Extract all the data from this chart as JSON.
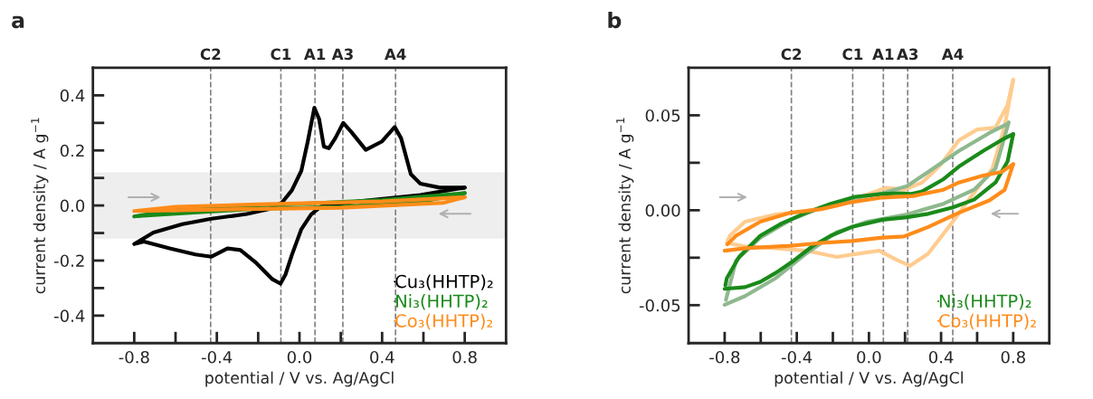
{
  "chart_data": [
    {
      "type": "line",
      "title": "a",
      "xlabel": "potential / V vs. Ag/AgCl",
      "ylabel": "current density / A g$^{−1}$",
      "xlim": [
        -1.0,
        1.0
      ],
      "ylim": [
        -0.5,
        0.5
      ],
      "xticks": [
        {
          "value": -0.8,
          "label": "-0.8"
        },
        {
          "value": -0.6,
          "label": null
        },
        {
          "value": -0.4,
          "label": "-0.4"
        },
        {
          "value": -0.2,
          "label": null
        },
        {
          "value": 0.0,
          "label": "0.0"
        },
        {
          "value": 0.2,
          "label": null
        },
        {
          "value": 0.4,
          "label": "0.4"
        },
        {
          "value": 0.6,
          "label": null
        },
        {
          "value": 0.8,
          "label": "0.8"
        }
      ],
      "yticks": [
        {
          "value": -0.4,
          "label": "-0.4"
        },
        {
          "value": -0.3,
          "label": null
        },
        {
          "value": -0.2,
          "label": "-0.2"
        },
        {
          "value": -0.1,
          "label": null
        },
        {
          "value": 0.0,
          "label": "0.0"
        },
        {
          "value": 0.1,
          "label": null
        },
        {
          "value": 0.2,
          "label": "0.2"
        },
        {
          "value": 0.3,
          "label": null
        },
        {
          "value": 0.4,
          "label": "0.4"
        }
      ],
      "grid": false,
      "legend": "bottom right",
      "bands": [
        {
          "axis": "y",
          "from": -0.12,
          "to": 0.12,
          "color": "#eeeeee"
        }
      ],
      "ref_lines": [
        {
          "axis": "x",
          "value": -0.43,
          "label": "C2",
          "color": "#808080",
          "line_style": "dashed"
        },
        {
          "axis": "x",
          "value": -0.09,
          "label": "C1",
          "color": "#808080",
          "line_style": "dashed"
        },
        {
          "axis": "x",
          "value": 0.075,
          "label": "A1",
          "color": "#808080",
          "line_style": "dashed"
        },
        {
          "axis": "x",
          "value": 0.21,
          "label": "A3",
          "color": "#808080",
          "line_style": "dashed"
        },
        {
          "axis": "x",
          "value": 0.465,
          "label": "A4",
          "color": "#808080",
          "line_style": "dashed"
        }
      ],
      "series": [
        {
          "name": "Cu₃(HHTP)₂",
          "color": "#000000",
          "x": [
            -0.8,
            -0.707,
            -0.567,
            -0.426,
            -0.255,
            -0.146,
            -0.084,
            -0.037,
            0.009,
            0.04,
            0.072,
            0.095,
            0.118,
            0.142,
            0.173,
            0.212,
            0.251,
            0.321,
            0.398,
            0.461,
            0.492,
            0.539,
            0.585,
            0.679,
            0.8
          ],
          "values": [
            -0.14,
            -0.098,
            -0.068,
            -0.048,
            -0.031,
            -0.013,
            0.011,
            0.055,
            0.126,
            0.232,
            0.355,
            0.314,
            0.214,
            0.208,
            0.244,
            0.3,
            0.267,
            0.202,
            0.232,
            0.285,
            0.244,
            0.114,
            0.079,
            0.065,
            0.065
          ]
        },
        {
          "color": "#000000",
          "x": [
            0.8,
            0.585,
            0.274,
            0.103,
            0.056,
            0.009,
            -0.037,
            -0.068,
            -0.092,
            -0.131,
            -0.209,
            -0.286,
            -0.349,
            -0.426,
            -0.504,
            -0.629,
            -0.753,
            -0.792
          ],
          "values": [
            0.065,
            0.038,
            0.014,
            -0.004,
            -0.033,
            -0.086,
            -0.18,
            -0.251,
            -0.284,
            -0.268,
            -0.209,
            -0.162,
            -0.156,
            -0.186,
            -0.178,
            -0.156,
            -0.131,
            -0.138
          ]
        },
        {
          "name": "Ni₃(HHTP)₂",
          "color": "#1a8a1a",
          "x": [
            -0.8,
            -0.6,
            -0.4,
            0.0,
            0.4,
            0.8
          ],
          "values": [
            -0.04,
            -0.015,
            -0.005,
            0.006,
            0.02,
            0.045
          ]
        },
        {
          "color": "#1a8a1a",
          "x": [
            0.8,
            0.6,
            0.2,
            -0.2,
            -0.6,
            -0.792
          ],
          "values": [
            0.045,
            0.015,
            -0.005,
            -0.012,
            -0.03,
            -0.039
          ]
        },
        {
          "name": "Co₃(HHTP)₂",
          "color": "#ff8c1a",
          "x": [
            -0.8,
            -0.6,
            -0.2,
            0.4,
            0.8
          ],
          "values": [
            -0.02,
            -0.005,
            0.004,
            0.015,
            0.03
          ]
        },
        {
          "color": "#ff8c1a",
          "x": [
            0.8,
            0.7,
            0.2,
            -0.4,
            -0.78
          ],
          "values": [
            0.03,
            0.01,
            -0.008,
            -0.015,
            -0.02
          ]
        }
      ]
    },
    {
      "type": "line",
      "title": "b",
      "xlabel": "potential / V vs. Ag/AgCl",
      "ylabel": "current density / A g$^{−1}$",
      "xlim": [
        -1.0,
        1.0
      ],
      "ylim": [
        -0.07,
        0.075
      ],
      "xticks": [
        {
          "value": -0.8,
          "label": "-0.8"
        },
        {
          "value": -0.6,
          "label": null
        },
        {
          "value": -0.4,
          "label": "-0.4"
        },
        {
          "value": -0.2,
          "label": null
        },
        {
          "value": 0.0,
          "label": "0.0"
        },
        {
          "value": 0.2,
          "label": null
        },
        {
          "value": 0.4,
          "label": "0.4"
        },
        {
          "value": 0.6,
          "label": null
        },
        {
          "value": 0.8,
          "label": "0.8"
        }
      ],
      "yticks": [
        {
          "value": -0.05,
          "label": "-0.05"
        },
        {
          "value": -0.025,
          "label": null
        },
        {
          "value": 0.0,
          "label": "0.00"
        },
        {
          "value": 0.025,
          "label": null
        },
        {
          "value": 0.05,
          "label": "0.05"
        }
      ],
      "grid": false,
      "legend": "bottom right",
      "ref_lines": [
        {
          "axis": "x",
          "value": -0.43,
          "label": "C2",
          "color": "#808080",
          "line_style": "dashed"
        },
        {
          "axis": "x",
          "value": -0.09,
          "label": "C1",
          "color": "#808080",
          "line_style": "dashed"
        },
        {
          "axis": "x",
          "value": 0.08,
          "label": "A1",
          "color": "#808080",
          "line_style": "dashed"
        },
        {
          "axis": "x",
          "value": 0.215,
          "label": "A3",
          "color": "#808080",
          "line_style": "dashed"
        },
        {
          "axis": "x",
          "value": 0.465,
          "label": "A4",
          "color": "#808080",
          "line_style": "dashed"
        }
      ],
      "series": [
        {
          "color": "#ffcc8f",
          "x": [
            -0.788,
            -0.687,
            -0.517,
            -0.348,
            -0.179,
            -0.077,
            0.058,
            0.143,
            0.228,
            0.329,
            0.465,
            0.566,
            0.685,
            0.753,
            0.8
          ],
          "values": [
            -0.0172,
            -0.019,
            -0.02,
            -0.0213,
            -0.0246,
            -0.0231,
            -0.0213,
            -0.0256,
            -0.0293,
            -0.0228,
            -0.006,
            0.0071,
            0.022,
            0.0444,
            0.0687
          ]
        },
        {
          "color": "#ffcc8f",
          "x": [
            0.8,
            0.769,
            0.702,
            0.6,
            0.499,
            0.397,
            0.295,
            0.194,
            0.092,
            -0.043,
            -0.179,
            -0.348,
            -0.517,
            -0.687,
            -0.771,
            -0.783
          ],
          "values": [
            0.0687,
            0.0556,
            0.0435,
            0.0425,
            0.0369,
            0.0239,
            0.0146,
            0.0108,
            0.0118,
            0.0071,
            0.0024,
            -0.0004,
            -0.0022,
            -0.006,
            -0.0134,
            -0.016
          ]
        },
        {
          "color": "#8fb88f",
          "x": [
            -0.8,
            -0.687,
            -0.517,
            -0.348,
            -0.179,
            -0.009,
            0.211,
            0.414,
            0.583,
            0.702,
            0.775
          ],
          "values": [
            -0.0498,
            -0.0452,
            -0.0358,
            -0.0228,
            -0.0116,
            -0.006,
            -0.0022,
            0.0034,
            0.0108,
            0.022,
            0.0463
          ]
        },
        {
          "color": "#8fb88f",
          "x": [
            0.768,
            0.668,
            0.499,
            0.329,
            0.211,
            0.075,
            -0.094,
            -0.263,
            -0.433,
            -0.602,
            -0.737,
            -0.793
          ],
          "values": [
            0.0455,
            0.0407,
            0.0313,
            0.0202,
            0.0127,
            0.009,
            0.0062,
            0.0015,
            -0.005,
            -0.0144,
            -0.0265,
            -0.0472
          ]
        },
        {
          "name": "Ni₃(HHTP)₂",
          "color": "#1a8a1a",
          "x": [
            -0.8,
            -0.687,
            -0.602,
            -0.517,
            -0.416,
            -0.314,
            -0.212,
            -0.094,
            0.075,
            0.211,
            0.329,
            0.465,
            0.583,
            0.702,
            0.769,
            0.8
          ],
          "values": [
            -0.0414,
            -0.0405,
            -0.0377,
            -0.033,
            -0.0265,
            -0.019,
            -0.0134,
            -0.0088,
            -0.005,
            -0.0037,
            -0.0019,
            0.0015,
            0.0056,
            0.0146,
            0.0258,
            0.0401
          ]
        },
        {
          "color": "#1a8a1a",
          "x": [
            0.8,
            0.736,
            0.634,
            0.499,
            0.414,
            0.295,
            0.236,
            0.16,
            0.075,
            -0.077,
            -0.212,
            -0.348,
            -0.483,
            -0.602,
            -0.72,
            -0.788,
            -0.796
          ],
          "values": [
            0.0401,
            0.037,
            0.0313,
            0.023,
            0.0164,
            0.0099,
            0.0086,
            0.009,
            0.0086,
            0.0071,
            0.0034,
            -0.0013,
            -0.0069,
            -0.0134,
            -0.0246,
            -0.0358,
            -0.0395
          ]
        },
        {
          "name": "Co₃(HHTP)₂",
          "color": "#ff8c1a",
          "x": [
            -0.8,
            -0.687,
            -0.433,
            -0.263,
            -0.094,
            0.075,
            0.194,
            0.329,
            0.499,
            0.668,
            0.753,
            0.8
          ],
          "values": [
            -0.0213,
            -0.02,
            -0.0187,
            -0.0172,
            -0.0162,
            -0.0144,
            -0.0138,
            -0.0088,
            -0.0013,
            0.0052,
            0.0108,
            0.0243
          ]
        },
        {
          "color": "#ff8c1a",
          "x": [
            0.8,
            0.736,
            0.634,
            0.499,
            0.414,
            0.245,
            0.075,
            -0.094,
            -0.263,
            -0.433,
            -0.602,
            -0.737,
            -0.785
          ],
          "values": [
            0.0243,
            0.0202,
            0.0183,
            0.0146,
            0.0108,
            0.0075,
            0.0067,
            0.0043,
            0.0006,
            -0.0013,
            -0.006,
            -0.0134,
            -0.018
          ]
        }
      ]
    }
  ]
}
